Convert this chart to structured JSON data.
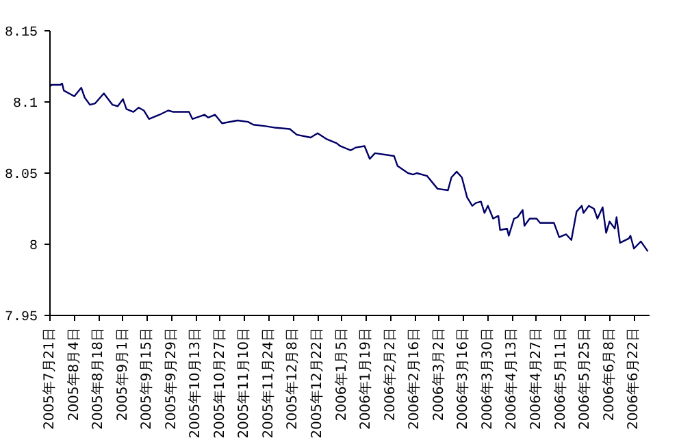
{
  "chart_data": {
    "type": "line",
    "x": [
      "2005-07-21",
      "2005-07-22",
      "2005-07-27",
      "2005-07-28",
      "2005-07-29",
      "2005-08-04",
      "2005-08-08",
      "2005-08-10",
      "2005-08-13",
      "2005-08-16",
      "2005-08-21",
      "2005-08-26",
      "2005-08-29",
      "2005-09-01",
      "2005-09-03",
      "2005-09-07",
      "2005-09-10",
      "2005-09-13",
      "2005-09-16",
      "2005-09-22",
      "2005-09-27",
      "2005-09-30",
      "2005-10-09",
      "2005-10-11",
      "2005-10-18",
      "2005-10-20",
      "2005-10-24",
      "2005-10-28",
      "2005-11-06",
      "2005-11-12",
      "2005-11-15",
      "2005-11-22",
      "2005-11-27",
      "2005-12-06",
      "2005-12-10",
      "2005-12-18",
      "2005-12-22",
      "2005-12-27",
      "2006-01-02",
      "2006-01-04",
      "2006-01-10",
      "2006-01-13",
      "2006-01-18",
      "2006-01-21",
      "2006-01-24",
      "2006-02-04",
      "2006-02-06",
      "2006-02-12",
      "2006-02-15",
      "2006-02-17",
      "2006-02-23",
      "2006-03-01",
      "2006-03-07",
      "2006-03-09",
      "2006-03-12",
      "2006-03-15",
      "2006-03-18",
      "2006-03-21",
      "2006-03-23",
      "2006-03-26",
      "2006-03-28",
      "2006-03-30",
      "2006-04-02",
      "2006-04-05",
      "2006-04-06",
      "2006-04-10",
      "2006-04-11",
      "2006-04-14",
      "2006-04-16",
      "2006-04-19",
      "2006-04-20",
      "2006-04-23",
      "2006-04-27",
      "2006-04-29",
      "2006-05-07",
      "2006-05-10",
      "2006-05-14",
      "2006-05-17",
      "2006-05-20",
      "2006-05-23",
      "2006-05-24",
      "2006-05-27",
      "2006-05-30",
      "2006-06-01",
      "2006-06-04",
      "2006-06-06",
      "2006-06-08",
      "2006-06-11",
      "2006-06-12",
      "2006-06-14",
      "2006-06-19",
      "2006-06-20",
      "2006-06-22",
      "2006-06-26",
      "2006-06-30"
    ],
    "series": [
      {
        "color": "#000066",
        "values": [
          8.111,
          8.112,
          8.112,
          8.113,
          8.108,
          8.104,
          8.11,
          8.103,
          8.098,
          8.099,
          8.106,
          8.098,
          8.097,
          8.102,
          8.095,
          8.093,
          8.096,
          8.094,
          8.088,
          8.091,
          8.094,
          8.093,
          8.093,
          8.088,
          8.091,
          8.089,
          8.091,
          8.085,
          8.087,
          8.086,
          8.084,
          8.083,
          8.082,
          8.081,
          8.077,
          8.075,
          8.078,
          8.074,
          8.071,
          8.069,
          8.066,
          8.068,
          8.069,
          8.06,
          8.064,
          8.062,
          8.055,
          8.05,
          8.049,
          8.05,
          8.048,
          8.039,
          8.038,
          8.047,
          8.051,
          8.047,
          8.033,
          8.027,
          8.029,
          8.03,
          8.022,
          8.027,
          8.018,
          8.02,
          8.01,
          8.011,
          8.006,
          8.018,
          8.019,
          8.024,
          8.013,
          8.018,
          8.018,
          8.015,
          8.015,
          8.005,
          8.007,
          8.003,
          8.023,
          8.027,
          8.022,
          8.027,
          8.025,
          8.018,
          8.026,
          8.008,
          8.016,
          8.011,
          8.019,
          8.001,
          8.004,
          8.006,
          7.997,
          8.002,
          7.995
        ]
      }
    ],
    "xlim": [
      "2005-07-21",
      "2006-07-01"
    ],
    "xticks": [
      {
        "value": "2005-07-21",
        "label": "2005年7月21日"
      },
      {
        "value": "2005-08-04",
        "label": "2005年8月4日"
      },
      {
        "value": "2005-08-18",
        "label": "2005年8月18日"
      },
      {
        "value": "2005-09-01",
        "label": "2005年9月1日"
      },
      {
        "value": "2005-09-15",
        "label": "2005年9月15日"
      },
      {
        "value": "2005-09-29",
        "label": "2005年9月29日"
      },
      {
        "value": "2005-10-13",
        "label": "2005年10月13日"
      },
      {
        "value": "2005-10-27",
        "label": "2005年10月27日"
      },
      {
        "value": "2005-11-10",
        "label": "2005年11月10日"
      },
      {
        "value": "2005-11-24",
        "label": "2005年11月24日"
      },
      {
        "value": "2005-12-08",
        "label": "2005年12月8日"
      },
      {
        "value": "2005-12-22",
        "label": "2005年12月22日"
      },
      {
        "value": "2006-01-05",
        "label": "2006年1月5日"
      },
      {
        "value": "2006-01-19",
        "label": "2006年1月19日"
      },
      {
        "value": "2006-02-02",
        "label": "2006年2月2日"
      },
      {
        "value": "2006-02-16",
        "label": "2006年2月16日"
      },
      {
        "value": "2006-03-02",
        "label": "2006年3月2日"
      },
      {
        "value": "2006-03-16",
        "label": "2006年3月16日"
      },
      {
        "value": "2006-03-30",
        "label": "2006年3月30日"
      },
      {
        "value": "2006-04-13",
        "label": "2006年4月13日"
      },
      {
        "value": "2006-04-27",
        "label": "2006年4月27日"
      },
      {
        "value": "2006-05-11",
        "label": "2006年5月11日"
      },
      {
        "value": "2006-05-25",
        "label": "2006年5月25日"
      },
      {
        "value": "2006-06-08",
        "label": "2006年6月8日"
      },
      {
        "value": "2006-06-22",
        "label": "2006年6月22日"
      }
    ],
    "ylim": [
      7.95,
      8.15
    ],
    "yticks": [
      7.95,
      8,
      8.05,
      8.1,
      8.15
    ],
    "grid": false,
    "line_style": "solid"
  }
}
